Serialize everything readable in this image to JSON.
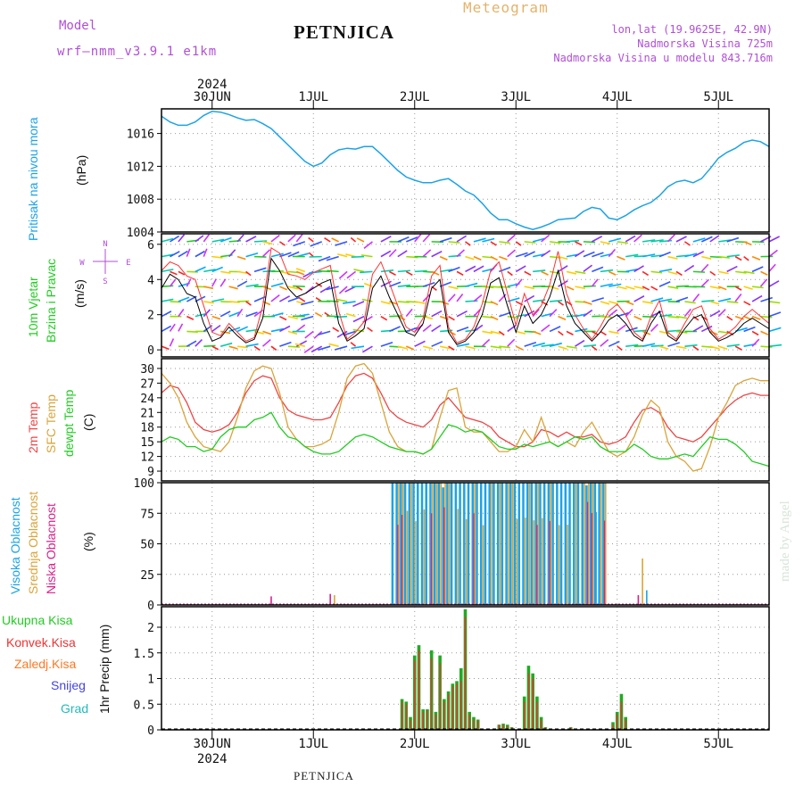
{
  "header": {
    "model_label": "Model",
    "model_name": "wrf—nmm_v3.9.1 e1km",
    "title": "PETNJICA",
    "meteogram_label": "Meteogram",
    "location": "lon,lat (19.9625E, 42.9N)",
    "altitude": "Nadmorska Visina 725m",
    "model_altitude": "Nadmorska Visina u modelu 843.716m"
  },
  "footer": {
    "station": "PETNJICA",
    "credit": "made by Angel"
  },
  "colors": {
    "pressure": "#1ca3e6",
    "wind_speed": "#000000",
    "wind_gust": "#ff3333",
    "temp_2m": "#ee4444",
    "temp_sfc": "#d9a43a",
    "temp_dew": "#22cc22",
    "cloud_high": "#1ca3e6",
    "cloud_mid": "#d9a43a",
    "cloud_low": "#d6228a",
    "precip_total": "#22aa22",
    "precip_conv": "#ee3333",
    "precip_frozen": "#ff7722",
    "precip_snow": "#4444dd",
    "precip_hail": "#22bbbb"
  },
  "chart_data": [
    {
      "type": "line",
      "panel": "pressure",
      "ylabel_lines": [
        "Pritisak na nivou mora"
      ],
      "unit": "(hPa)",
      "ylim": [
        1004,
        1019
      ],
      "yticks": [
        1004,
        1008,
        1012,
        1016
      ],
      "x_day_labels": [
        "30JUN",
        "1JUL",
        "2JUL",
        "3JUL",
        "4JUL",
        "5JUL"
      ],
      "x_year_label": "2024",
      "x_hours": [
        -12,
        -10,
        -8,
        -6,
        -4,
        -2,
        0,
        2,
        4,
        6,
        8,
        10,
        12,
        14,
        16,
        18,
        20,
        22,
        24,
        26,
        28,
        30,
        32,
        34,
        36,
        38,
        40,
        42,
        44,
        46,
        48,
        50,
        52,
        54,
        56,
        58,
        60,
        62,
        64,
        66,
        68,
        70,
        72,
        74,
        76,
        78,
        80,
        82,
        84,
        86,
        88,
        90,
        92,
        94,
        96,
        98,
        100,
        102,
        104,
        106,
        108,
        110,
        112,
        114,
        116,
        118,
        120,
        122,
        124,
        126,
        128,
        130,
        132
      ],
      "series": [
        {
          "values": [
            1018.1,
            1017.4,
            1017.0,
            1017.0,
            1017.4,
            1018.2,
            1018.7,
            1018.6,
            1018.3,
            1017.9,
            1017.6,
            1017.7,
            1017.2,
            1016.6,
            1015.6,
            1014.6,
            1013.6,
            1012.6,
            1012.0,
            1012.4,
            1013.4,
            1014.0,
            1014.2,
            1014.1,
            1014.4,
            1014.4,
            1013.5,
            1012.5,
            1011.5,
            1010.7,
            1010.3,
            1010.0,
            1010.0,
            1010.3,
            1010.5,
            1009.8,
            1009.0,
            1008.5,
            1007.5,
            1006.3,
            1005.5,
            1005.5,
            1005.0,
            1004.6,
            1004.3,
            1004.6,
            1005.0,
            1005.5,
            1005.6,
            1005.7,
            1006.5,
            1007.0,
            1006.8,
            1005.7,
            1005.5,
            1006.0,
            1006.7,
            1007.2,
            1007.6,
            1008.4,
            1009.5,
            1010.1,
            1010.3,
            1010.0,
            1010.5,
            1011.7,
            1013.0,
            1013.7,
            1014.2,
            1014.9,
            1015.2,
            1015.0,
            1014.4
          ]
        }
      ]
    },
    {
      "type": "line",
      "panel": "wind",
      "ylabel_lines": [
        "10m Vjetar",
        "Brzina i Pravac"
      ],
      "unit": "(m/s)",
      "ylim": [
        -0.4,
        6.6
      ],
      "yticks": [
        0,
        2,
        4,
        6
      ],
      "compass_labels": [
        "N",
        "W",
        "E",
        "S"
      ],
      "x_hours": [
        -12,
        -10,
        -8,
        -6,
        -4,
        -2,
        0,
        2,
        4,
        6,
        8,
        10,
        12,
        14,
        16,
        18,
        20,
        22,
        24,
        26,
        28,
        30,
        32,
        34,
        36,
        38,
        40,
        42,
        44,
        46,
        48,
        50,
        52,
        54,
        56,
        58,
        60,
        62,
        64,
        66,
        68,
        70,
        72,
        74,
        76,
        78,
        80,
        82,
        84,
        86,
        88,
        90,
        92,
        94,
        96,
        98,
        100,
        102,
        104,
        106,
        108,
        110,
        112,
        114,
        116,
        118,
        120,
        122,
        124,
        126,
        128,
        130,
        132
      ],
      "series": [
        {
          "values": [
            3.5,
            4.3,
            4.0,
            3.2,
            3.0,
            1.5,
            0.5,
            0.7,
            1.3,
            0.8,
            0.4,
            0.6,
            1.8,
            5.2,
            4.5,
            3.5,
            3.0,
            3.2,
            3.5,
            3.8,
            4.0,
            1.5,
            0.5,
            0.8,
            1.2,
            3.5,
            4.2,
            3.0,
            2.0,
            1.0,
            0.8,
            1.5,
            3.5,
            4.0,
            1.0,
            0.3,
            0.5,
            1.0,
            2.0,
            3.8,
            4.1,
            2.5,
            1.0,
            2.5,
            1.5,
            2.0,
            3.0,
            4.5,
            2.5,
            1.5,
            1.0,
            0.5,
            1.0,
            1.7,
            2.0,
            1.5,
            0.8,
            0.5,
            1.5,
            2.2,
            0.8,
            0.5,
            1.2,
            1.8,
            2.0,
            1.0,
            0.5,
            0.7,
            1.0,
            1.5,
            1.8,
            1.5,
            1.2
          ]
        },
        {
          "values": [
            4.5,
            5.0,
            4.8,
            4.2,
            4.0,
            2.5,
            1.0,
            0.8,
            1.5,
            1.0,
            0.5,
            0.7,
            2.5,
            5.8,
            5.5,
            4.3,
            4.2,
            4.0,
            4.4,
            4.6,
            4.8,
            2.2,
            0.6,
            1.0,
            1.6,
            4.3,
            5.0,
            3.8,
            2.5,
            1.3,
            1.0,
            1.8,
            4.2,
            4.8,
            1.3,
            0.4,
            0.6,
            1.3,
            2.6,
            4.5,
            5.0,
            3.2,
            1.4,
            3.2,
            2.0,
            2.5,
            3.7,
            5.6,
            3.2,
            2.0,
            1.2,
            0.6,
            1.3,
            2.2,
            2.6,
            2.0,
            1.0,
            0.6,
            1.9,
            2.8,
            1.0,
            0.6,
            1.5,
            2.3,
            2.5,
            1.2,
            0.6,
            0.9,
            1.3,
            1.9,
            2.3,
            1.9,
            1.5
          ]
        }
      ]
    },
    {
      "type": "line",
      "panel": "temperature",
      "ylabel_lines": [
        "2m Temp",
        "SFC Temp",
        "dewpt Temp"
      ],
      "unit": "(C)",
      "ylim": [
        7,
        32
      ],
      "yticks": [
        9,
        12,
        15,
        18,
        21,
        24,
        27,
        30
      ],
      "x_hours": [
        -12,
        -10,
        -8,
        -6,
        -4,
        -2,
        0,
        2,
        4,
        6,
        8,
        10,
        12,
        14,
        16,
        18,
        20,
        22,
        24,
        26,
        28,
        30,
        32,
        34,
        36,
        38,
        40,
        42,
        44,
        46,
        48,
        50,
        52,
        54,
        56,
        58,
        60,
        62,
        64,
        66,
        68,
        70,
        72,
        74,
        76,
        78,
        80,
        82,
        84,
        86,
        88,
        90,
        92,
        94,
        96,
        98,
        100,
        102,
        104,
        106,
        108,
        110,
        112,
        114,
        116,
        118,
        120,
        122,
        124,
        126,
        128,
        130,
        132
      ],
      "series": [
        {
          "name": "2m Temp",
          "values": [
            25,
            26.5,
            26,
            23,
            19,
            17.5,
            17,
            17.5,
            18.5,
            21,
            25,
            27.5,
            28.5,
            28,
            24,
            21.5,
            20.5,
            20,
            19.5,
            19.5,
            20,
            23,
            26.5,
            28.5,
            29,
            28,
            25,
            21.5,
            20,
            19,
            18.5,
            18,
            19.5,
            22.5,
            24,
            22,
            20,
            19.5,
            19,
            18,
            16,
            15,
            14,
            14,
            15,
            17.5,
            17,
            16,
            17,
            16,
            16,
            16.5,
            15,
            14.5,
            15,
            16,
            19,
            21.5,
            22,
            21,
            18,
            16,
            15.5,
            15,
            16,
            18,
            20,
            22,
            23.5,
            24.5,
            25,
            24.5,
            24.5
          ]
        },
        {
          "name": "SFC Temp",
          "values": [
            29,
            27,
            24,
            19,
            16,
            14,
            13.5,
            13,
            15,
            20,
            26,
            29.5,
            30.5,
            30,
            25,
            18,
            15.5,
            14,
            14,
            14.5,
            15.5,
            21,
            28,
            30.5,
            31,
            29,
            23,
            17,
            14,
            13,
            13,
            12.5,
            13.5,
            20,
            25.5,
            26,
            18,
            17,
            17,
            15,
            13,
            13,
            14,
            17.5,
            15,
            20,
            15,
            14,
            15,
            14,
            17,
            19,
            16,
            13,
            12,
            13,
            16,
            20.5,
            23.5,
            22,
            15,
            12,
            11,
            9,
            9.5,
            14,
            20,
            23,
            26.5,
            27.5,
            28,
            27.5,
            27.5
          ]
        },
        {
          "name": "dewpt Temp",
          "values": [
            15,
            16,
            15.5,
            14,
            14,
            13,
            13.5,
            16,
            17.5,
            18,
            18,
            19.5,
            20,
            21,
            18,
            16,
            15.5,
            14,
            13,
            12.5,
            12.5,
            13,
            14.5,
            16,
            16.5,
            16,
            15,
            14,
            13.5,
            13,
            13,
            12.5,
            13.5,
            16,
            18.5,
            18,
            17,
            17.5,
            17,
            15.5,
            14,
            13.5,
            13.5,
            14.5,
            14,
            14.5,
            15,
            14,
            15,
            16,
            15.5,
            16,
            14,
            13,
            13,
            13,
            14.5,
            13.5,
            12,
            11.5,
            11.5,
            12,
            12.5,
            12,
            14,
            16,
            15.5,
            15.5,
            14.5,
            13,
            11,
            10.5,
            10
          ]
        }
      ]
    },
    {
      "type": "bar",
      "panel": "clouds",
      "ylabel_lines": [
        "Visoka Oblacnost",
        "Srednja Oblacnost",
        "Niska Oblacnost"
      ],
      "unit": "(%)",
      "ylim": [
        0,
        100
      ],
      "yticks": [
        0,
        25,
        50,
        75,
        100
      ]
    },
    {
      "type": "bar",
      "panel": "precipitation",
      "legend": [
        "Ukupna Kisa",
        "Konvek.Kisa",
        "Zaledj.Kisa",
        "Snijeg",
        "Grad"
      ],
      "ylabel": "1hr Precip (mm)",
      "ylim": [
        0,
        2.4
      ],
      "yticks": [
        0,
        0.5,
        1,
        1.5,
        2
      ],
      "bars": [
        {
          "hour": 45,
          "total": 0.6,
          "conv": 0.55
        },
        {
          "hour": 46,
          "total": 0.55,
          "conv": 0.5
        },
        {
          "hour": 47,
          "total": 0.25,
          "conv": 0.2
        },
        {
          "hour": 48,
          "total": 1.45,
          "conv": 1.35
        },
        {
          "hour": 49,
          "total": 1.65,
          "conv": 1.55
        },
        {
          "hour": 50,
          "total": 0.4,
          "conv": 0.35
        },
        {
          "hour": 51,
          "total": 0.4,
          "conv": 0.38
        },
        {
          "hour": 52,
          "total": 1.55,
          "conv": 1.4
        },
        {
          "hour": 53,
          "total": 0.35,
          "conv": 0.3
        },
        {
          "hour": 54,
          "total": 1.45,
          "conv": 1.3
        },
        {
          "hour": 55,
          "total": 0.6,
          "conv": 0.55
        },
        {
          "hour": 56,
          "total": 0.75,
          "conv": 0.7
        },
        {
          "hour": 57,
          "total": 0.9,
          "conv": 0.85
        },
        {
          "hour": 58,
          "total": 0.95,
          "conv": 0.9
        },
        {
          "hour": 59,
          "total": 1.2,
          "conv": 0.95
        },
        {
          "hour": 60,
          "total": 2.35,
          "conv": 2.2
        },
        {
          "hour": 61,
          "total": 0.35,
          "conv": 0.3
        },
        {
          "hour": 62,
          "total": 0.25,
          "conv": 0.2
        },
        {
          "hour": 63,
          "total": 0.2,
          "conv": 0.18
        },
        {
          "hour": 68,
          "total": 0.1,
          "conv": 0.1
        },
        {
          "hour": 69,
          "total": 0.12,
          "conv": 0.1
        },
        {
          "hour": 70,
          "total": 0.1,
          "conv": 0.08
        },
        {
          "hour": 71,
          "total": 0.05,
          "conv": 0.05
        },
        {
          "hour": 74,
          "total": 0.65,
          "conv": 0.55
        },
        {
          "hour": 75,
          "total": 1.25,
          "conv": 1.1
        },
        {
          "hour": 76,
          "total": 1.1,
          "conv": 1.0
        },
        {
          "hour": 77,
          "total": 0.65,
          "conv": 0.55
        },
        {
          "hour": 78,
          "total": 0.25,
          "conv": 0.2
        },
        {
          "hour": 79,
          "total": 0.05,
          "conv": 0.05
        },
        {
          "hour": 85,
          "total": 0.05,
          "conv": 0.05
        },
        {
          "hour": 95,
          "total": 0.15,
          "conv": 0.1
        },
        {
          "hour": 96,
          "total": 0.35,
          "conv": 0.3
        },
        {
          "hour": 97,
          "total": 0.7,
          "conv": 0.55
        },
        {
          "hour": 98,
          "total": 0.25,
          "conv": 0.2
        },
        {
          "hour": 107,
          "total": 0.02,
          "conv": 0.02
        }
      ]
    }
  ]
}
